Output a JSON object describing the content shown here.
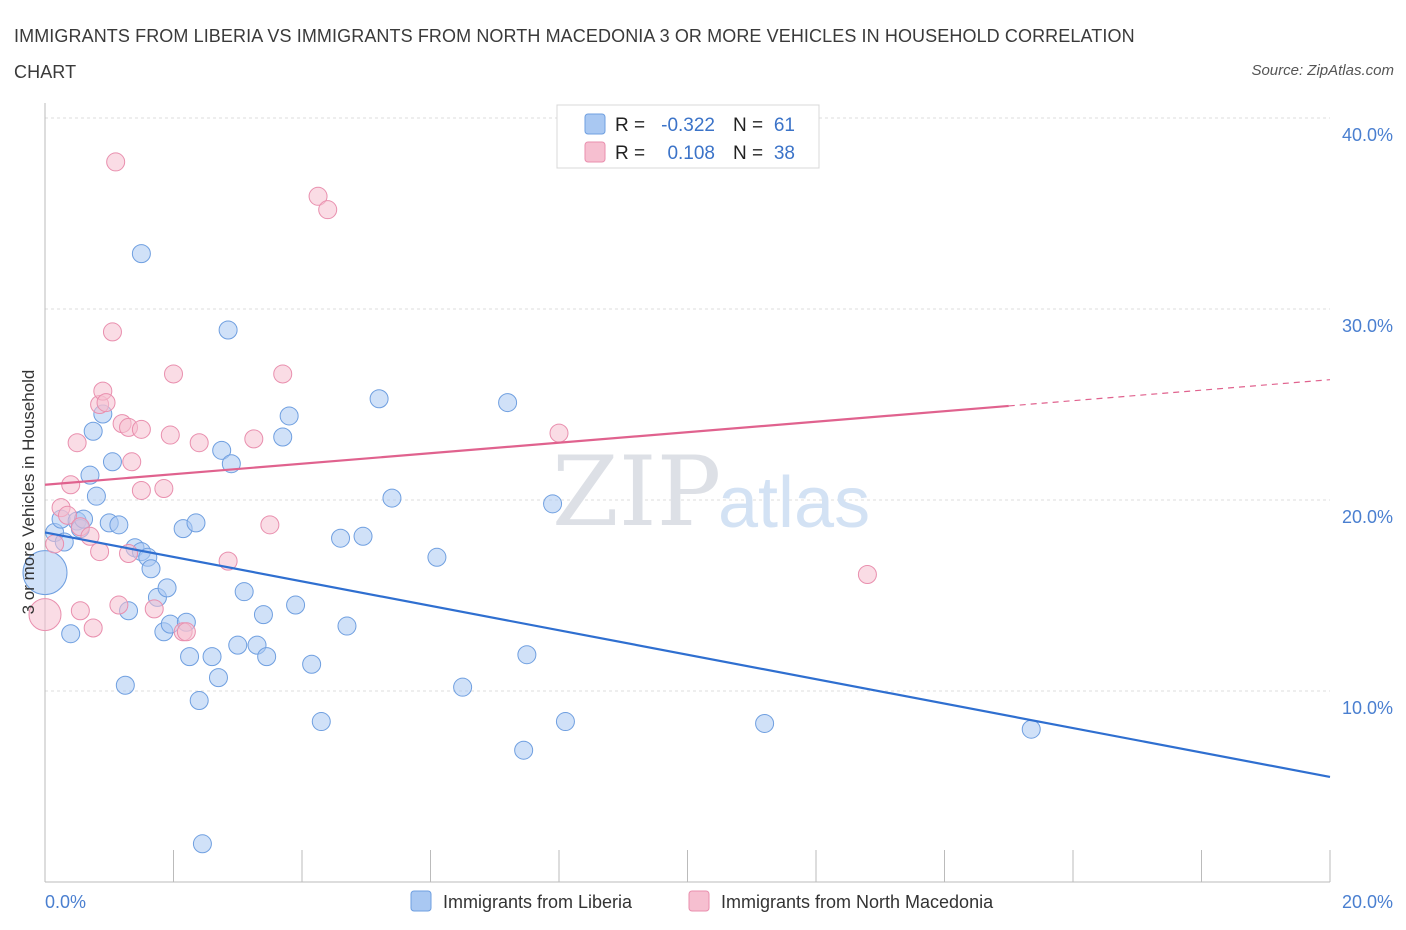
{
  "title": "IMMIGRANTS FROM LIBERIA VS IMMIGRANTS FROM NORTH MACEDONIA 3 OR MORE VEHICLES IN HOUSEHOLD CORRELATION CHART",
  "source": "Source: ZipAtlas.com",
  "watermark": {
    "zip": "ZIP",
    "atlas": "atlas"
  },
  "colors": {
    "blue_fill": "#a9c8f2",
    "blue_stroke": "#6f9fe0",
    "blue_line": "#2f6fd0",
    "pink_fill": "#f6bfd0",
    "pink_stroke": "#e98fae",
    "pink_line": "#e0628e",
    "grid": "#dcdcdc",
    "axis_text": "#4a7fd0"
  },
  "legend_top": [
    {
      "series": "Immigrants from Liberia",
      "r_label": "R =",
      "r_value": "-0.322",
      "n_label": "N =",
      "n_value": "61"
    },
    {
      "series": "Immigrants from North Macedonia",
      "r_label": "R =",
      "r_value": "0.108",
      "n_label": "N =",
      "n_value": "38"
    }
  ],
  "chart_data": {
    "type": "scatter",
    "title": "IMMIGRANTS FROM LIBERIA VS IMMIGRANTS FROM NORTH MACEDONIA 3 OR MORE VEHICLES IN HOUSEHOLD CORRELATION CHART",
    "xlabel": "",
    "ylabel": "3 or more Vehicles in Household",
    "xlim": [
      0,
      20
    ],
    "ylim": [
      0,
      40
    ],
    "x_tick_labels": [
      {
        "value": 0,
        "label": "0.0%"
      },
      {
        "value": 20,
        "label": "20.0%"
      }
    ],
    "y_tick_labels": [
      {
        "value": 10,
        "label": "10.0%"
      },
      {
        "value": 20,
        "label": "20.0%"
      },
      {
        "value": 30,
        "label": "30.0%"
      },
      {
        "value": 40,
        "label": "40.0%"
      }
    ],
    "x_minor_ticks": [
      2,
      4,
      6,
      8,
      10,
      12,
      14,
      16,
      18,
      20
    ],
    "grid": true,
    "legend_position": "top-center",
    "series": [
      {
        "name": "Immigrants from Liberia",
        "color": "blue",
        "r": -0.322,
        "n": 61,
        "trend": {
          "x0": 0,
          "y0": 18.3,
          "x1": 20,
          "y1": 5.5,
          "dashed_from": null
        },
        "points": [
          [
            0.0,
            16.2,
            22
          ],
          [
            0.15,
            18.3,
            9
          ],
          [
            0.25,
            19.0,
            9
          ],
          [
            0.3,
            17.8,
            9
          ],
          [
            0.4,
            13.0,
            9
          ],
          [
            0.5,
            18.9,
            9
          ],
          [
            0.55,
            18.5,
            9
          ],
          [
            0.6,
            19.0,
            9
          ],
          [
            0.7,
            21.3,
            9
          ],
          [
            0.75,
            23.6,
            9
          ],
          [
            0.8,
            20.2,
            9
          ],
          [
            0.9,
            24.5,
            9
          ],
          [
            1.0,
            18.8,
            9
          ],
          [
            1.05,
            22.0,
            9
          ],
          [
            1.15,
            18.7,
            9
          ],
          [
            1.25,
            10.3,
            9
          ],
          [
            1.3,
            14.2,
            9
          ],
          [
            1.4,
            17.5,
            9
          ],
          [
            1.5,
            17.3,
            9
          ],
          [
            1.5,
            32.9,
            9
          ],
          [
            1.6,
            17.0,
            9
          ],
          [
            1.65,
            16.4,
            9
          ],
          [
            1.75,
            14.9,
            9
          ],
          [
            1.85,
            13.1,
            9
          ],
          [
            1.9,
            15.4,
            9
          ],
          [
            1.95,
            13.5,
            9
          ],
          [
            2.15,
            18.5,
            9
          ],
          [
            2.2,
            13.6,
            9
          ],
          [
            2.25,
            11.8,
            9
          ],
          [
            2.35,
            18.8,
            9
          ],
          [
            2.4,
            9.5,
            9
          ],
          [
            2.45,
            2.0,
            9
          ],
          [
            2.6,
            11.8,
            9
          ],
          [
            2.7,
            10.7,
            9
          ],
          [
            2.75,
            22.6,
            9
          ],
          [
            2.85,
            28.9,
            9
          ],
          [
            2.9,
            21.9,
            9
          ],
          [
            3.0,
            12.4,
            9
          ],
          [
            3.1,
            15.2,
            9
          ],
          [
            3.3,
            12.4,
            9
          ],
          [
            3.4,
            14.0,
            9
          ],
          [
            3.45,
            11.8,
            9
          ],
          [
            3.7,
            23.3,
            9
          ],
          [
            3.8,
            24.4,
            9
          ],
          [
            3.9,
            14.5,
            9
          ],
          [
            4.15,
            11.4,
            9
          ],
          [
            4.3,
            8.4,
            9
          ],
          [
            4.6,
            18.0,
            9
          ],
          [
            4.7,
            13.4,
            9
          ],
          [
            4.95,
            18.1,
            9
          ],
          [
            5.2,
            25.3,
            9
          ],
          [
            5.4,
            20.1,
            9
          ],
          [
            6.1,
            17.0,
            9
          ],
          [
            6.5,
            10.2,
            9
          ],
          [
            7.2,
            25.1,
            9
          ],
          [
            7.45,
            6.9,
            9
          ],
          [
            7.5,
            11.9,
            9
          ],
          [
            7.9,
            19.8,
            9
          ],
          [
            8.1,
            8.4,
            9
          ],
          [
            11.2,
            8.3,
            9
          ],
          [
            15.35,
            8.0,
            9
          ]
        ]
      },
      {
        "name": "Immigrants from North Macedonia",
        "color": "pink",
        "r": 0.108,
        "n": 38,
        "trend": {
          "x0": 0,
          "y0": 20.8,
          "x1": 20,
          "y1": 26.3,
          "dashed_from": 15.0
        },
        "points": [
          [
            0.0,
            14.0,
            16
          ],
          [
            0.15,
            17.7,
            9
          ],
          [
            0.25,
            19.6,
            9
          ],
          [
            0.35,
            19.2,
            9
          ],
          [
            0.4,
            20.8,
            9
          ],
          [
            0.55,
            18.6,
            9
          ],
          [
            0.5,
            23.0,
            9
          ],
          [
            0.55,
            14.2,
            9
          ],
          [
            0.7,
            18.1,
            9
          ],
          [
            0.75,
            13.3,
            9
          ],
          [
            0.85,
            25.0,
            9
          ],
          [
            0.9,
            25.7,
            9
          ],
          [
            0.95,
            25.1,
            9
          ],
          [
            1.05,
            28.8,
            9
          ],
          [
            1.1,
            37.7,
            9
          ],
          [
            1.15,
            14.5,
            9
          ],
          [
            1.2,
            24.0,
            9
          ],
          [
            1.3,
            17.2,
            9
          ],
          [
            1.3,
            23.8,
            9
          ],
          [
            1.35,
            22.0,
            9
          ],
          [
            1.5,
            23.7,
            9
          ],
          [
            1.5,
            20.5,
            9
          ],
          [
            1.7,
            14.3,
            9
          ],
          [
            1.85,
            20.6,
            9
          ],
          [
            1.95,
            23.4,
            9
          ],
          [
            2.0,
            26.6,
            9
          ],
          [
            2.15,
            13.1,
            9
          ],
          [
            2.2,
            13.1,
            9
          ],
          [
            2.4,
            23.0,
            9
          ],
          [
            2.85,
            16.8,
            9
          ],
          [
            3.25,
            23.2,
            9
          ],
          [
            3.5,
            18.7,
            9
          ],
          [
            3.7,
            26.6,
            9
          ],
          [
            4.25,
            35.9,
            9
          ],
          [
            4.4,
            35.2,
            9
          ],
          [
            8.0,
            23.5,
            9
          ],
          [
            12.8,
            16.1,
            9
          ],
          [
            0.85,
            17.3,
            9
          ]
        ]
      }
    ]
  }
}
